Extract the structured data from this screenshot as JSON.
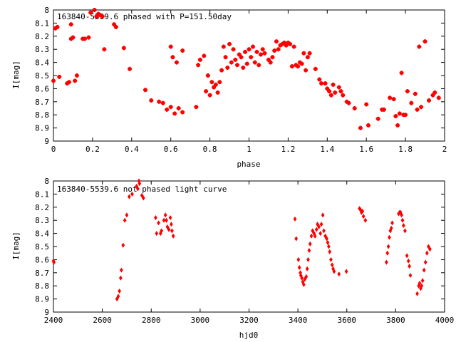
{
  "chart_data": [
    {
      "type": "scatter",
      "title": "163840-5539.6 phased with P=151.50day",
      "xlabel": "phase",
      "ylabel": "I[mag]",
      "xlim": [
        0,
        2
      ],
      "ylim": [
        9,
        8
      ],
      "y_inverted": true,
      "x_ticks": [
        "0",
        "0.2",
        "0.4",
        "0.6",
        "0.8",
        "1",
        "1.2",
        "1.4",
        "1.6",
        "1.8",
        "2"
      ],
      "y_ticks": [
        "8",
        "8.1",
        "8.2",
        "8.3",
        "8.4",
        "8.5",
        "8.6",
        "8.7",
        "8.8",
        "8.9",
        "9"
      ],
      "marker": "plus",
      "color": "#ff0000",
      "grid": false,
      "points": [
        [
          0.0,
          8.54
        ],
        [
          0.01,
          8.14
        ],
        [
          0.02,
          8.13
        ],
        [
          0.03,
          8.51
        ],
        [
          0.07,
          8.56
        ],
        [
          0.08,
          8.55
        ],
        [
          0.09,
          8.22
        ],
        [
          0.09,
          8.11
        ],
        [
          0.1,
          8.21
        ],
        [
          0.11,
          8.54
        ],
        [
          0.12,
          8.5
        ],
        [
          0.15,
          8.22
        ],
        [
          0.16,
          8.22
        ],
        [
          0.18,
          8.21
        ],
        [
          0.19,
          8.02
        ],
        [
          0.21,
          8.0
        ],
        [
          0.22,
          8.05
        ],
        [
          0.23,
          8.03
        ],
        [
          0.24,
          8.04
        ],
        [
          0.25,
          8.05
        ],
        [
          0.26,
          8.3
        ],
        [
          0.31,
          8.11
        ],
        [
          0.32,
          8.13
        ],
        [
          0.36,
          8.29
        ],
        [
          0.39,
          8.45
        ],
        [
          0.47,
          8.61
        ],
        [
          0.5,
          8.69
        ],
        [
          0.54,
          8.7
        ],
        [
          0.56,
          8.71
        ],
        [
          0.58,
          8.76
        ],
        [
          0.6,
          8.28
        ],
        [
          0.6,
          8.74
        ],
        [
          0.61,
          8.36
        ],
        [
          0.62,
          8.79
        ],
        [
          0.63,
          8.4
        ],
        [
          0.64,
          8.75
        ],
        [
          0.66,
          8.31
        ],
        [
          0.66,
          8.78
        ],
        [
          0.73,
          8.74
        ],
        [
          0.74,
          8.42
        ],
        [
          0.75,
          8.38
        ],
        [
          0.77,
          8.35
        ],
        [
          0.78,
          8.62
        ],
        [
          0.79,
          8.5
        ],
        [
          0.8,
          8.65
        ],
        [
          0.81,
          8.55
        ],
        [
          0.82,
          8.59
        ],
        [
          0.83,
          8.57
        ],
        [
          0.84,
          8.63
        ],
        [
          0.85,
          8.55
        ],
        [
          0.86,
          8.46
        ],
        [
          0.87,
          8.28
        ],
        [
          0.88,
          8.36
        ],
        [
          0.89,
          8.44
        ],
        [
          0.9,
          8.26
        ],
        [
          0.91,
          8.4
        ],
        [
          0.92,
          8.3
        ],
        [
          0.93,
          8.38
        ],
        [
          0.94,
          8.42
        ],
        [
          0.95,
          8.34
        ],
        [
          0.96,
          8.36
        ],
        [
          0.97,
          8.44
        ],
        [
          0.98,
          8.32
        ],
        [
          0.99,
          8.41
        ],
        [
          1.0,
          8.3
        ],
        [
          1.01,
          8.36
        ],
        [
          1.02,
          8.28
        ],
        [
          1.03,
          8.4
        ],
        [
          1.04,
          8.32
        ],
        [
          1.05,
          8.42
        ],
        [
          1.06,
          8.34
        ],
        [
          1.07,
          8.3
        ],
        [
          1.08,
          8.33
        ],
        [
          1.1,
          8.38
        ],
        [
          1.11,
          8.4
        ],
        [
          1.12,
          8.36
        ],
        [
          1.13,
          8.31
        ],
        [
          1.14,
          8.24
        ],
        [
          1.15,
          8.3
        ],
        [
          1.16,
          8.27
        ],
        [
          1.17,
          8.26
        ],
        [
          1.18,
          8.25
        ],
        [
          1.19,
          8.27
        ],
        [
          1.2,
          8.25
        ],
        [
          1.21,
          8.26
        ],
        [
          1.22,
          8.43
        ],
        [
          1.23,
          8.28
        ],
        [
          1.24,
          8.42
        ],
        [
          1.25,
          8.43
        ],
        [
          1.26,
          8.4
        ],
        [
          1.27,
          8.41
        ],
        [
          1.28,
          8.33
        ],
        [
          1.29,
          8.46
        ],
        [
          1.3,
          8.36
        ],
        [
          1.31,
          8.33
        ],
        [
          1.34,
          8.45
        ],
        [
          1.36,
          8.53
        ],
        [
          1.37,
          8.56
        ],
        [
          1.39,
          8.56
        ],
        [
          1.4,
          8.6
        ],
        [
          1.41,
          8.62
        ],
        [
          1.42,
          8.65
        ],
        [
          1.43,
          8.57
        ],
        [
          1.44,
          8.63
        ],
        [
          1.46,
          8.59
        ],
        [
          1.47,
          8.62
        ],
        [
          1.48,
          8.65
        ],
        [
          1.5,
          8.7
        ],
        [
          1.51,
          8.71
        ],
        [
          1.54,
          8.75
        ],
        [
          1.57,
          8.9
        ],
        [
          1.6,
          8.72
        ],
        [
          1.61,
          8.88
        ],
        [
          1.66,
          8.83
        ],
        [
          1.68,
          8.76
        ],
        [
          1.69,
          8.76
        ],
        [
          1.72,
          8.67
        ],
        [
          1.74,
          8.68
        ],
        [
          1.75,
          8.81
        ],
        [
          1.76,
          8.88
        ],
        [
          1.77,
          8.79
        ],
        [
          1.78,
          8.48
        ],
        [
          1.79,
          8.8
        ],
        [
          1.8,
          8.8
        ],
        [
          1.81,
          8.62
        ],
        [
          1.83,
          8.71
        ],
        [
          1.85,
          8.64
        ],
        [
          1.86,
          8.76
        ],
        [
          1.87,
          8.28
        ],
        [
          1.88,
          8.74
        ],
        [
          1.9,
          8.24
        ],
        [
          1.92,
          8.69
        ],
        [
          1.94,
          8.65
        ],
        [
          1.95,
          8.63
        ],
        [
          1.97,
          8.67
        ]
      ]
    },
    {
      "type": "scatter",
      "title": "163840-5539.6 not phased light curve",
      "xlabel": "hjd0",
      "ylabel": "I[mag]",
      "xlim": [
        2400,
        4000
      ],
      "ylim": [
        9,
        8
      ],
      "y_inverted": true,
      "x_ticks": [
        "2400",
        "2600",
        "2800",
        "3000",
        "3200",
        "3400",
        "3600",
        "3800",
        "4000"
      ],
      "y_ticks": [
        "8",
        "8.1",
        "8.2",
        "8.3",
        "8.4",
        "8.5",
        "8.6",
        "8.7",
        "8.8",
        "8.9",
        "9"
      ],
      "marker": "diamond",
      "color": "#ff0000",
      "grid": false,
      "points": [
        [
          2400,
          8.61
        ],
        [
          2402,
          8.62
        ],
        [
          2660,
          8.9
        ],
        [
          2665,
          8.88
        ],
        [
          2670,
          8.84
        ],
        [
          2675,
          8.74
        ],
        [
          2678,
          8.68
        ],
        [
          2685,
          8.49
        ],
        [
          2692,
          8.3
        ],
        [
          2700,
          8.26
        ],
        [
          2710,
          8.12
        ],
        [
          2722,
          8.1
        ],
        [
          2740,
          8.04
        ],
        [
          2745,
          8.06
        ],
        [
          2750,
          8.0
        ],
        [
          2752,
          8.02
        ],
        [
          2762,
          8.11
        ],
        [
          2768,
          8.13
        ],
        [
          2818,
          8.28
        ],
        [
          2822,
          8.4
        ],
        [
          2830,
          8.32
        ],
        [
          2838,
          8.4
        ],
        [
          2842,
          8.38
        ],
        [
          2852,
          8.3
        ],
        [
          2858,
          8.26
        ],
        [
          2862,
          8.3
        ],
        [
          2866,
          8.35
        ],
        [
          2872,
          8.37
        ],
        [
          2878,
          8.28
        ],
        [
          2882,
          8.33
        ],
        [
          2885,
          8.38
        ],
        [
          2890,
          8.42
        ],
        [
          3388,
          8.29
        ],
        [
          3393,
          8.44
        ],
        [
          3402,
          8.6
        ],
        [
          3406,
          8.66
        ],
        [
          3410,
          8.7
        ],
        [
          3412,
          8.72
        ],
        [
          3416,
          8.74
        ],
        [
          3420,
          8.77
        ],
        [
          3424,
          8.79
        ],
        [
          3428,
          8.75
        ],
        [
          3434,
          8.73
        ],
        [
          3438,
          8.67
        ],
        [
          3442,
          8.6
        ],
        [
          3446,
          8.53
        ],
        [
          3450,
          8.48
        ],
        [
          3455,
          8.42
        ],
        [
          3460,
          8.38
        ],
        [
          3466,
          8.4
        ],
        [
          3470,
          8.42
        ],
        [
          3476,
          8.37
        ],
        [
          3480,
          8.33
        ],
        [
          3486,
          8.35
        ],
        [
          3492,
          8.4
        ],
        [
          3496,
          8.33
        ],
        [
          3502,
          8.26
        ],
        [
          3506,
          8.38
        ],
        [
          3512,
          8.42
        ],
        [
          3518,
          8.44
        ],
        [
          3522,
          8.47
        ],
        [
          3526,
          8.5
        ],
        [
          3530,
          8.54
        ],
        [
          3535,
          8.6
        ],
        [
          3540,
          8.64
        ],
        [
          3544,
          8.67
        ],
        [
          3548,
          8.69
        ],
        [
          3568,
          8.71
        ],
        [
          3598,
          8.69
        ],
        [
          3652,
          8.21
        ],
        [
          3656,
          8.22
        ],
        [
          3660,
          8.24
        ],
        [
          3664,
          8.23
        ],
        [
          3668,
          8.27
        ],
        [
          3676,
          8.3
        ],
        [
          3762,
          8.62
        ],
        [
          3766,
          8.55
        ],
        [
          3770,
          8.5
        ],
        [
          3774,
          8.43
        ],
        [
          3778,
          8.38
        ],
        [
          3782,
          8.36
        ],
        [
          3786,
          8.32
        ],
        [
          3812,
          8.25
        ],
        [
          3816,
          8.24
        ],
        [
          3820,
          8.24
        ],
        [
          3824,
          8.26
        ],
        [
          3828,
          8.3
        ],
        [
          3832,
          8.34
        ],
        [
          3838,
          8.38
        ],
        [
          3846,
          8.57
        ],
        [
          3852,
          8.61
        ],
        [
          3856,
          8.65
        ],
        [
          3860,
          8.72
        ],
        [
          3888,
          8.86
        ],
        [
          3894,
          8.8
        ],
        [
          3898,
          8.78
        ],
        [
          3902,
          8.82
        ],
        [
          3906,
          8.8
        ],
        [
          3910,
          8.76
        ],
        [
          3916,
          8.68
        ],
        [
          3922,
          8.62
        ],
        [
          3928,
          8.55
        ],
        [
          3934,
          8.5
        ],
        [
          3940,
          8.52
        ]
      ]
    }
  ]
}
